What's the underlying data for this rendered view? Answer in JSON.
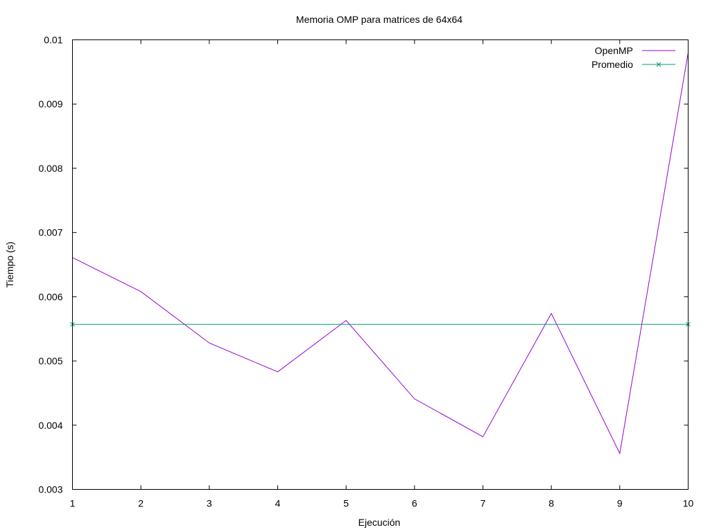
{
  "chart_data": {
    "type": "line",
    "title": "Memoria OMP para matrices de 64x64",
    "xlabel": "Ejecución",
    "ylabel": "Tiempo (s)",
    "xlim": [
      1,
      10
    ],
    "ylim": [
      0.003,
      0.01
    ],
    "x_ticks": [
      1,
      2,
      3,
      4,
      5,
      6,
      7,
      8,
      9,
      10
    ],
    "x_tick_labels": [
      "1",
      "2",
      "3",
      "4",
      "5",
      "6",
      "7",
      "8",
      "9",
      "10"
    ],
    "y_ticks": [
      0.003,
      0.004,
      0.005,
      0.006,
      0.007,
      0.008,
      0.009,
      0.01
    ],
    "y_tick_labels": [
      "0.003",
      "0.004",
      "0.005",
      "0.006",
      "0.007",
      "0.008",
      "0.009",
      "0.01"
    ],
    "grid": false,
    "legend_position": "top-right",
    "series": [
      {
        "name": "OpenMP",
        "color": "#9400d3",
        "marker": "none",
        "x": [
          1,
          2,
          3,
          4,
          5,
          6,
          7,
          8,
          9,
          10
        ],
        "y": [
          0.00661,
          0.00608,
          0.00528,
          0.00483,
          0.00563,
          0.00441,
          0.00382,
          0.00574,
          0.00356,
          0.0098
        ]
      },
      {
        "name": "Promedio",
        "color": "#009e73",
        "marker": "x",
        "x": [
          1,
          10
        ],
        "y": [
          0.00557,
          0.00557
        ]
      }
    ]
  }
}
